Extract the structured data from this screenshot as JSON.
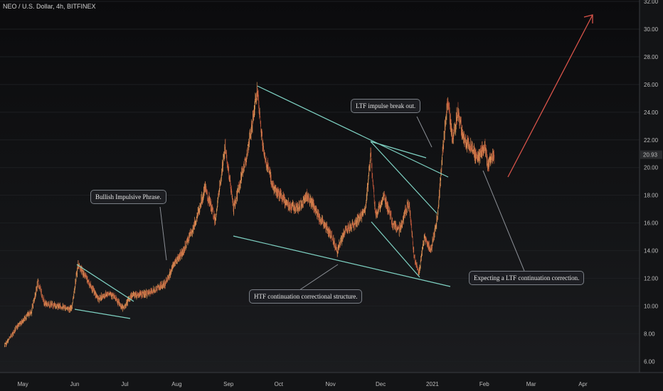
{
  "header": {
    "symbol": "NEO / U.S. Dollar, 4h, BITFINEX"
  },
  "chart_data": {
    "type": "candlestick",
    "symbol": "NEO / U.S. Dollar",
    "interval": "4h",
    "exchange": "BITFINEX",
    "x_ticks": [
      "May",
      "Jun",
      "Jul",
      "Aug",
      "Sep",
      "Oct",
      "Nov",
      "Dec",
      "2021",
      "Feb",
      "Mar",
      "Apr"
    ],
    "y_ticks": [
      "6.00",
      "8.00",
      "10.00",
      "12.00",
      "14.00",
      "16.00",
      "18.00",
      "20.00",
      "22.00",
      "24.00",
      "26.00",
      "28.00",
      "30.00",
      "32.00"
    ],
    "ylim": [
      5.2,
      32.0
    ],
    "y_min": 5.2,
    "y_max": 32.0,
    "last_price": "20.93",
    "price_path": [
      [
        "2020-04-20",
        7.1
      ],
      [
        "2020-04-28",
        8.6
      ],
      [
        "2020-05-06",
        9.6
      ],
      [
        "2020-05-10",
        11.7
      ],
      [
        "2020-05-14",
        10.2
      ],
      [
        "2020-05-22",
        10.0
      ],
      [
        "2020-05-30",
        9.8
      ],
      [
        "2020-06-03",
        13.0
      ],
      [
        "2020-06-08",
        12.0
      ],
      [
        "2020-06-15",
        10.5
      ],
      [
        "2020-06-22",
        11.0
      ],
      [
        "2020-06-30",
        9.8
      ],
      [
        "2020-07-05",
        10.8
      ],
      [
        "2020-07-15",
        10.9
      ],
      [
        "2020-07-25",
        11.6
      ],
      [
        "2020-07-31",
        13.2
      ],
      [
        "2020-08-05",
        14.0
      ],
      [
        "2020-08-12",
        16.0
      ],
      [
        "2020-08-18",
        18.5
      ],
      [
        "2020-08-24",
        16.2
      ],
      [
        "2020-08-30",
        21.5
      ],
      [
        "2020-09-04",
        17.0
      ],
      [
        "2020-09-08",
        19.0
      ],
      [
        "2020-09-13",
        21.5
      ],
      [
        "2020-09-18",
        25.5
      ],
      [
        "2020-09-22",
        21.0
      ],
      [
        "2020-09-28",
        18.5
      ],
      [
        "2020-10-05",
        17.5
      ],
      [
        "2020-10-12",
        17.0
      ],
      [
        "2020-10-18",
        18.0
      ],
      [
        "2020-10-25",
        16.5
      ],
      [
        "2020-11-02",
        15.0
      ],
      [
        "2020-11-05",
        14.0
      ],
      [
        "2020-11-10",
        15.5
      ],
      [
        "2020-11-16",
        16.0
      ],
      [
        "2020-11-22",
        17.0
      ],
      [
        "2020-11-25",
        21.0
      ],
      [
        "2020-11-28",
        16.5
      ],
      [
        "2020-12-03",
        18.0
      ],
      [
        "2020-12-08",
        16.0
      ],
      [
        "2020-12-12",
        15.5
      ],
      [
        "2020-12-18",
        17.5
      ],
      [
        "2020-12-21",
        13.5
      ],
      [
        "2020-12-24",
        12.5
      ],
      [
        "2020-12-27",
        15.0
      ],
      [
        "2020-12-31",
        14.0
      ],
      [
        "2021-01-04",
        16.5
      ],
      [
        "2021-01-07",
        21.0
      ],
      [
        "2021-01-10",
        25.0
      ],
      [
        "2021-01-13",
        22.0
      ],
      [
        "2021-01-16",
        24.0
      ],
      [
        "2021-01-20",
        22.0
      ],
      [
        "2021-01-24",
        21.5
      ],
      [
        "2021-01-28",
        20.6
      ],
      [
        "2021-02-01",
        21.6
      ],
      [
        "2021-02-03",
        20.3
      ],
      [
        "2021-02-07",
        20.9
      ]
    ],
    "annotations": [
      {
        "text": "Bullish Impulsive Phrase."
      },
      {
        "text": "LTF impulse break out."
      },
      {
        "text": "HTF continuation correctional structure."
      },
      {
        "text": "Expecting a LTF continuation correction."
      }
    ],
    "colors": {
      "up": "#e8a05c",
      "down": "#c0563a",
      "trendline": "#7fd3c4",
      "arrow": "#d9544a",
      "background": "#101113"
    }
  }
}
